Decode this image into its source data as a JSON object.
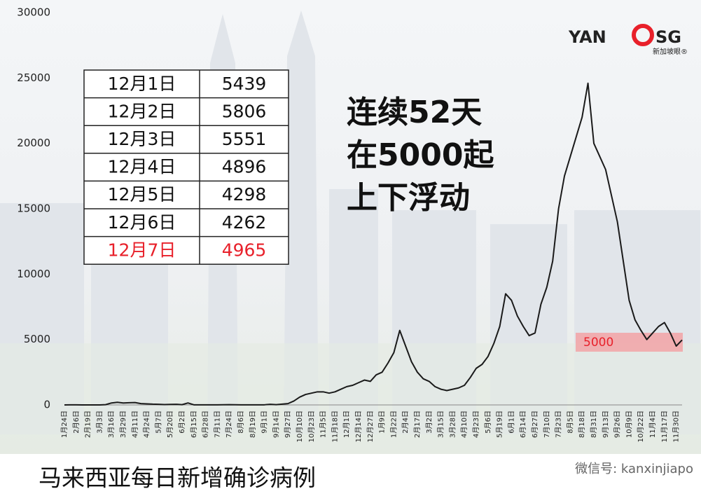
{
  "chart_data": {
    "type": "line",
    "title": "马来西亚每日新增确诊病例",
    "headline": [
      "连续52天",
      "在5000起",
      "上下浮动"
    ],
    "annotation": "5000",
    "logo": {
      "main": "YAN",
      "mark": "SG",
      "sub": "新加坡眼®"
    },
    "watermark": "微信号: kanxinjiapo",
    "ylim": [
      0,
      30000
    ],
    "yticks": [
      0,
      5000,
      10000,
      15000,
      20000,
      25000,
      30000
    ],
    "categories": [
      "1月24日",
      null,
      "2月6日",
      null,
      "2月19日",
      null,
      "3月3日",
      null,
      "3月16日",
      null,
      "3月29日",
      null,
      "4月11日",
      null,
      "4月24日",
      null,
      "5月7日",
      null,
      "5月20日",
      null,
      "6月2日",
      null,
      "6月15日",
      null,
      "6月28日",
      null,
      "7月11日",
      null,
      "7月24日",
      null,
      "8月6日",
      null,
      "8月19日",
      null,
      "9月1日",
      null,
      "9月14日",
      null,
      "9月27日",
      null,
      "10月10日",
      null,
      "10月23日",
      null,
      "11月5日",
      null,
      "11月18日",
      null,
      "12月1日",
      null,
      "12月14日",
      null,
      "12月27日",
      null,
      "1月9日",
      null,
      "1月22日",
      null,
      "2月4日",
      null,
      "2月17日",
      null,
      "3月2日",
      null,
      "3月15日",
      null,
      "3月28日",
      null,
      "4月10日",
      null,
      "4月23日",
      null,
      "5月6日",
      null,
      "5月19日",
      null,
      "6月1日",
      null,
      "6月14日",
      null,
      "6月27日",
      null,
      "7月10日",
      null,
      "7月23日",
      null,
      "8月5日",
      null,
      "8月18日",
      null,
      "8月31日",
      null,
      "9月13日",
      null,
      "9月26日",
      null,
      "10月9日",
      null,
      "10月22日",
      null,
      "11月4日",
      null,
      "11月17日",
      null,
      "11月30日",
      null
    ],
    "series": [
      {
        "name": "每日新增确诊病例",
        "color": "#1a1a1a",
        "values": [
          0,
          5,
          10,
          2,
          0,
          0,
          0,
          20,
          150,
          200,
          150,
          170,
          180,
          100,
          80,
          60,
          50,
          30,
          40,
          50,
          20,
          150,
          10,
          5,
          5,
          10,
          10,
          15,
          20,
          15,
          10,
          10,
          10,
          10,
          10,
          50,
          20,
          60,
          100,
          300,
          600,
          800,
          900,
          1000,
          1000,
          900,
          1000,
          1200,
          1400,
          1500,
          1700,
          1900,
          1800,
          2300,
          2500,
          3200,
          4000,
          5700,
          4500,
          3300,
          2500,
          2000,
          1800,
          1400,
          1200,
          1100,
          1200,
          1300,
          1500,
          2100,
          2800,
          3100,
          3700,
          4700,
          6000,
          8500,
          8000,
          6800,
          6000,
          5300,
          5500,
          7700,
          9000,
          11000,
          15000,
          17500,
          19000,
          20500,
          22000,
          24599,
          20000,
          19000,
          18000,
          16000,
          14000,
          11000,
          8000,
          6500,
          5700,
          5000,
          5500,
          6000,
          6300,
          5500,
          4500,
          4965
        ]
      }
    ],
    "table": {
      "highlight_row": 6,
      "highlight_color": "#e8202a",
      "rows": [
        [
          "12月1日",
          5439
        ],
        [
          "12月2日",
          5806
        ],
        [
          "12月3日",
          5551
        ],
        [
          "12月4日",
          4896
        ],
        [
          "12月5日",
          4298
        ],
        [
          "12月6日",
          4262
        ],
        [
          "12月7日",
          4965
        ]
      ]
    }
  }
}
